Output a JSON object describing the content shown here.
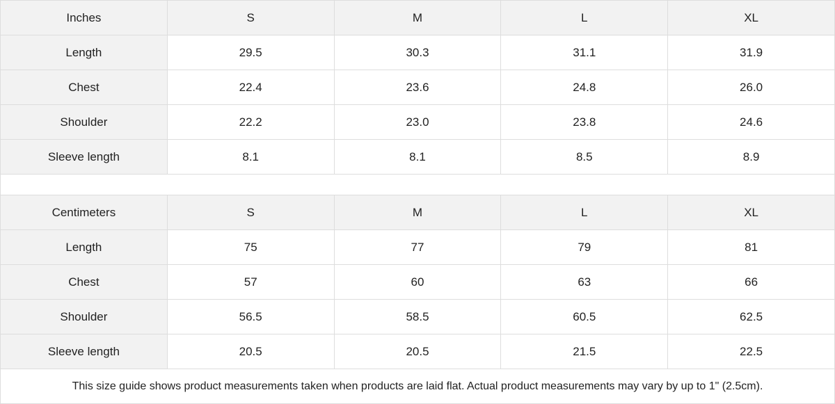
{
  "tables": [
    {
      "unit": "Inches",
      "sizes": [
        "S",
        "M",
        "L",
        "XL"
      ],
      "rows": [
        {
          "label": "Length",
          "values": [
            "29.5",
            "30.3",
            "31.1",
            "31.9"
          ]
        },
        {
          "label": "Chest",
          "values": [
            "22.4",
            "23.6",
            "24.8",
            "26.0"
          ]
        },
        {
          "label": "Shoulder",
          "values": [
            "22.2",
            "23.0",
            "23.8",
            "24.6"
          ]
        },
        {
          "label": "Sleeve length",
          "values": [
            "8.1",
            "8.1",
            "8.5",
            "8.9"
          ]
        }
      ]
    },
    {
      "unit": "Centimeters",
      "sizes": [
        "S",
        "M",
        "L",
        "XL"
      ],
      "rows": [
        {
          "label": "Length",
          "values": [
            "75",
            "77",
            "79",
            "81"
          ]
        },
        {
          "label": "Chest",
          "values": [
            "57",
            "60",
            "63",
            "66"
          ]
        },
        {
          "label": "Shoulder",
          "values": [
            "56.5",
            "58.5",
            "60.5",
            "62.5"
          ]
        },
        {
          "label": "Sleeve length",
          "values": [
            "20.5",
            "20.5",
            "21.5",
            "22.5"
          ]
        }
      ]
    }
  ],
  "note": "This size guide shows product measurements taken when products are laid flat.  Actual product measurements may vary by up to 1\" (2.5cm)."
}
